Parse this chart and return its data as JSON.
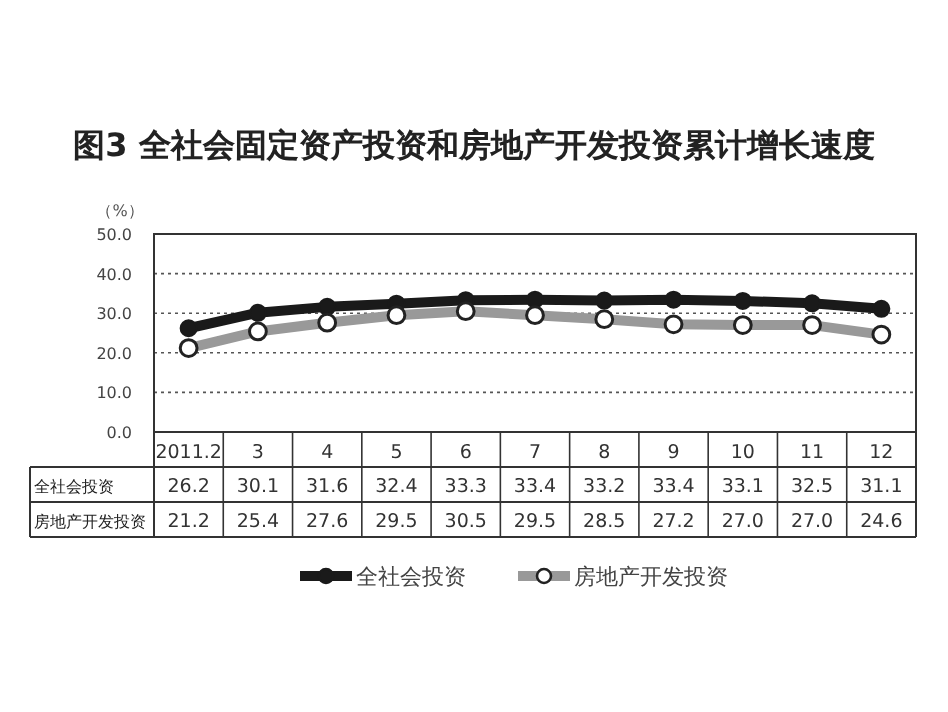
{
  "chart_data": {
    "type": "line",
    "title": "图3  全社会固定资产投资和房地产开发投资累计增长速度",
    "ylabel": "（%）",
    "categories": [
      "2011.2",
      "3",
      "4",
      "5",
      "6",
      "7",
      "8",
      "9",
      "10",
      "11",
      "12"
    ],
    "series": [
      {
        "name": "全社会投资",
        "color": "#1a1a1a",
        "values": [
          26.2,
          30.1,
          31.6,
          32.4,
          33.3,
          33.4,
          33.2,
          33.4,
          33.1,
          32.5,
          31.1
        ],
        "value_labels": [
          "26.2",
          "30.1",
          "31.6",
          "32.4",
          "33.3",
          "33.4",
          "33.2",
          "33.4",
          "33.1",
          "32.5",
          "31.1"
        ]
      },
      {
        "name": "房地产开发投资",
        "color": "#999999",
        "values": [
          21.2,
          25.4,
          27.6,
          29.5,
          30.5,
          29.5,
          28.5,
          27.2,
          27.0,
          27.0,
          24.6
        ],
        "value_labels": [
          "21.2",
          "25.4",
          "27.6",
          "29.5",
          "30.5",
          "29.5",
          "28.5",
          "27.2",
          "27.0",
          "27.0",
          "24.6"
        ]
      }
    ],
    "ylim": [
      0,
      50
    ],
    "yticks": [
      {
        "value": 0,
        "label": "0.0"
      },
      {
        "value": 10,
        "label": "10.0"
      },
      {
        "value": 20,
        "label": "20.0"
      },
      {
        "value": 30,
        "label": "30.0"
      },
      {
        "value": 40,
        "label": "40.0"
      },
      {
        "value": 50,
        "label": "50.0"
      }
    ],
    "grid": "y",
    "legend": "bottom",
    "marker": "circle"
  }
}
